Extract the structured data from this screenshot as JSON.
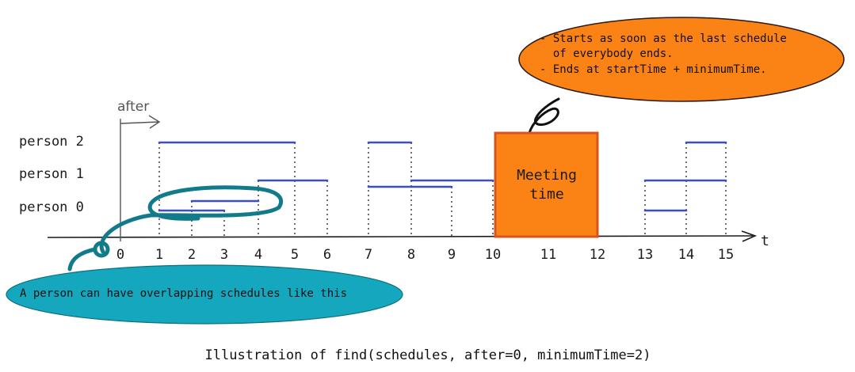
{
  "axis": {
    "after_label": "after",
    "t_label": "t",
    "ticks": [
      "0",
      "1",
      "2",
      "3",
      "4",
      "5",
      "6",
      "7",
      "8",
      "9",
      "10",
      "11",
      "12",
      "13",
      "14",
      "15"
    ]
  },
  "rows": [
    {
      "label": "person 2",
      "intervals": [
        [
          1,
          5
        ],
        [
          7,
          8
        ],
        [
          14,
          15
        ]
      ]
    },
    {
      "label": "person 1",
      "intervals": [
        [
          4,
          6
        ],
        [
          8,
          10
        ],
        [
          13,
          15
        ]
      ]
    },
    {
      "label": "person 0",
      "intervals": [
        [
          1,
          3
        ],
        [
          2,
          4
        ],
        [
          7,
          9
        ],
        [
          13,
          14
        ]
      ]
    }
  ],
  "meeting": {
    "label_line1": "Meeting",
    "label_line2": "time",
    "start": 10,
    "end": 12
  },
  "callout_top": {
    "line1": "- Starts as soon as the last schedule",
    "line2": "  of everybody ends.",
    "line3": "- Ends at startTime + minimumTime."
  },
  "callout_bottom": {
    "text": "A person can have overlapping schedules like this"
  },
  "caption": "Illustration of find(schedules, after=0, minimumTime=2)",
  "colors": {
    "interval": "#3b4fc4",
    "meeting_fill": "#fb8214",
    "meeting_stroke": "#d9541c",
    "callout_orange": "#fb8214",
    "callout_teal": "#14a7bd",
    "lasso": "#117a8b",
    "ink": "#1b1b1b"
  }
}
